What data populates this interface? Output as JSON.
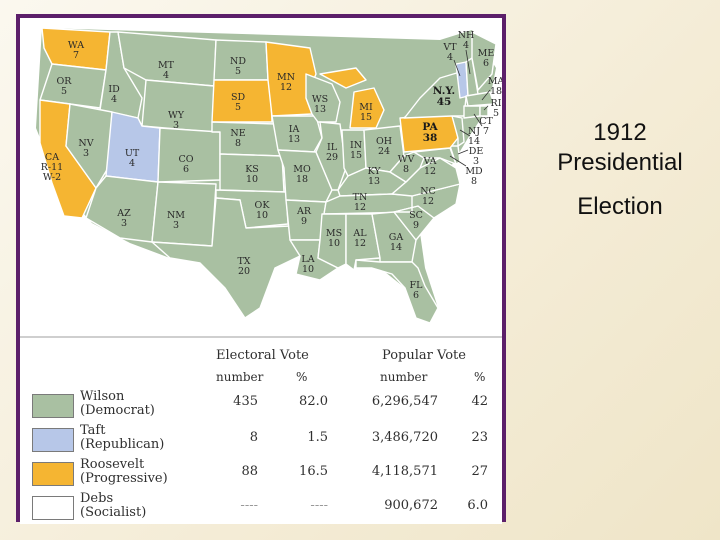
{
  "slide": {
    "title_lines": [
      "1912",
      "Presidential",
      "Election"
    ]
  },
  "colors": {
    "wilson": "#a9c0a2",
    "taft": "#b7c7e8",
    "roosevelt": "#f5b532",
    "debs": "#ffffff",
    "frame": "#5c1f6a"
  },
  "states": {
    "WA": {
      "n": "WA",
      "v": "7"
    },
    "OR": {
      "n": "OR",
      "v": "5"
    },
    "CA": {
      "n": "CA",
      "v": "R-11",
      "v2": "W-2"
    },
    "ID": {
      "n": "ID",
      "v": "4"
    },
    "NV": {
      "n": "NV",
      "v": "3"
    },
    "MT": {
      "n": "MT",
      "v": "4"
    },
    "WY": {
      "n": "WY",
      "v": "3"
    },
    "UT": {
      "n": "UT",
      "v": "4"
    },
    "AZ": {
      "n": "AZ",
      "v": "3"
    },
    "CO": {
      "n": "CO",
      "v": "6"
    },
    "NM": {
      "n": "NM",
      "v": "3"
    },
    "ND": {
      "n": "ND",
      "v": "5"
    },
    "SD": {
      "n": "SD",
      "v": "5"
    },
    "NE": {
      "n": "NE",
      "v": "8"
    },
    "KS": {
      "n": "KS",
      "v": "10"
    },
    "OK": {
      "n": "OK",
      "v": "10"
    },
    "TX": {
      "n": "TX",
      "v": "20"
    },
    "MN": {
      "n": "MN",
      "v": "12"
    },
    "IA": {
      "n": "IA",
      "v": "13"
    },
    "MO": {
      "n": "MO",
      "v": "18"
    },
    "AR": {
      "n": "AR",
      "v": "9"
    },
    "LA": {
      "n": "LA",
      "v": "10"
    },
    "WS": {
      "n": "WS",
      "v": "13"
    },
    "IL": {
      "n": "IL",
      "v": "29"
    },
    "MI": {
      "n": "MI",
      "v": "15"
    },
    "IN": {
      "n": "IN",
      "v": "15"
    },
    "OH": {
      "n": "OH",
      "v": "24"
    },
    "KY": {
      "n": "KY",
      "v": "13"
    },
    "TN": {
      "n": "TN",
      "v": "12"
    },
    "MS": {
      "n": "MS",
      "v": "10"
    },
    "AL": {
      "n": "AL",
      "v": "12"
    },
    "GA": {
      "n": "GA",
      "v": "14"
    },
    "FL": {
      "n": "FL",
      "v": "6"
    },
    "SC": {
      "n": "SC",
      "v": "9"
    },
    "NC": {
      "n": "NC",
      "v": "12"
    },
    "VA": {
      "n": "VA",
      "v": "12"
    },
    "WV": {
      "n": "WV",
      "v": "8"
    },
    "PA": {
      "n": "PA",
      "v": "38"
    },
    "NY": {
      "n": "N.Y.",
      "v": "45"
    },
    "VT": {
      "n": "VT",
      "v": "4"
    },
    "NH": {
      "n": "NH",
      "v": "4"
    },
    "ME": {
      "n": "ME",
      "v": "6"
    },
    "MA": {
      "n": "MA",
      "v": "18"
    },
    "RI": {
      "n": "RI",
      "v": "5"
    },
    "CT": {
      "n": "CT",
      "v": "7"
    },
    "NJ": {
      "n": "NJ",
      "v": "14"
    },
    "DE": {
      "n": "DE",
      "v": "3"
    },
    "MD": {
      "n": "MD",
      "v": "8"
    }
  },
  "legend": {
    "electoral_header": "Electoral Vote",
    "popular_header": "Popular Vote",
    "sub_number": "number",
    "sub_pct": "%",
    "rows": [
      {
        "name": "Wilson",
        "party": "(Democrat)",
        "ev": "435",
        "ev_pct": "82.0",
        "pv": "6,296,547",
        "pv_pct": "42"
      },
      {
        "name": "Taft",
        "party": "(Republican)",
        "ev": "8",
        "ev_pct": "1.5",
        "pv": "3,486,720",
        "pv_pct": "23"
      },
      {
        "name": "Roosevelt",
        "party": "(Progressive)",
        "ev": "88",
        "ev_pct": "16.5",
        "pv": "4,118,571",
        "pv_pct": "27"
      },
      {
        "name": "Debs",
        "party": "(Socialist)",
        "ev": "----",
        "ev_pct": "----",
        "pv": "900,672",
        "pv_pct": "6.0"
      }
    ]
  }
}
